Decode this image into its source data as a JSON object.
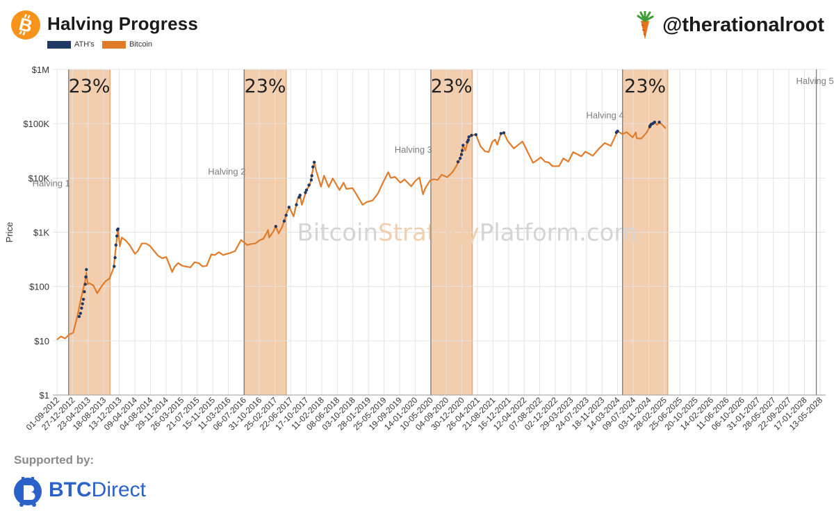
{
  "header": {
    "title": "Halving Progress",
    "handle": "@therationalroot"
  },
  "legend": [
    {
      "label": "ATH's",
      "color": "#1f3864"
    },
    {
      "label": "Bitcoin",
      "color": "#e07b29"
    }
  ],
  "watermark": {
    "part1": "Bitcoin",
    "part2": "Strategy",
    "part3": "Platform.com"
  },
  "footer": {
    "supported_label": "Supported by:",
    "brand_bold": "BTC",
    "brand_light": "Direct"
  },
  "colors": {
    "bitcoin": "#e07b29",
    "ath": "#1f3864",
    "shade": "#f2c9a5",
    "shade_border": "#e8a978",
    "grid": "#e3e3e3",
    "brand_blue": "#2b62c9"
  },
  "chart_data": {
    "type": "line",
    "ylabel": "Price",
    "yscale": "log",
    "ylim": [
      1,
      1000000
    ],
    "yticks": [
      {
        "value": 1,
        "label": "$1"
      },
      {
        "value": 10,
        "label": "$10"
      },
      {
        "value": 100,
        "label": "$100"
      },
      {
        "value": 1000,
        "label": "$1K"
      },
      {
        "value": 10000,
        "label": "$10K"
      },
      {
        "value": 100000,
        "label": "$100K"
      },
      {
        "value": 1000000,
        "label": "$1M"
      }
    ],
    "xlim": [
      "2012-08-01",
      "2028-06-24"
    ],
    "xticks": [
      "01-09-2012",
      "27-12-2012",
      "23-04-2013",
      "18-08-2013",
      "13-12-2013",
      "09-04-2014",
      "04-08-2014",
      "29-11-2014",
      "26-03-2015",
      "21-07-2015",
      "15-11-2015",
      "11-03-2016",
      "06-07-2016",
      "31-10-2016",
      "25-02-2017",
      "22-06-2017",
      "17-10-2017",
      "11-02-2018",
      "08-06-2018",
      "03-10-2018",
      "28-01-2019",
      "25-05-2019",
      "19-09-2019",
      "14-01-2020",
      "10-05-2020",
      "04-09-2020",
      "30-12-2020",
      "26-04-2021",
      "21-08-2021",
      "16-12-2021",
      "12-04-2022",
      "07-08-2022",
      "02-12-2022",
      "29-03-2023",
      "24-07-2023",
      "18-11-2023",
      "14-03-2024",
      "09-07-2024",
      "03-11-2024",
      "28-02-2025",
      "25-06-2025",
      "20-10-2025",
      "14-02-2026",
      "11-06-2026",
      "06-10-2026",
      "31-01-2027",
      "28-05-2027",
      "22-09-2027",
      "17-01-2028",
      "13-05-2028"
    ],
    "halvings": [
      {
        "label": "Halving 1",
        "date": "2012-11-28",
        "band_end": "2013-10-05",
        "label_price": 7000
      },
      {
        "label": "Halving 2",
        "date": "2016-07-09",
        "band_end": "2017-05-20",
        "label_price": 11500
      },
      {
        "label": "Halving 3",
        "date": "2020-05-11",
        "band_end": "2021-03-18",
        "label_price": 29000
      },
      {
        "label": "Halving 4",
        "date": "2024-04-20",
        "band_end": "2025-03-25",
        "label_price": 125000
      },
      {
        "label": "Halving 5",
        "date": "2028-04-15",
        "label_price": 540000
      }
    ],
    "progress_labels": [
      "23%",
      "23%",
      "23%",
      "23%"
    ],
    "series": [
      {
        "name": "Bitcoin",
        "color": "#e07b29",
        "points": [
          [
            "2012-09-01",
            10.5
          ],
          [
            "2012-10-01",
            12
          ],
          [
            "2012-11-01",
            11
          ],
          [
            "2012-12-01",
            13
          ],
          [
            "2013-01-01",
            14
          ],
          [
            "2013-02-01",
            28
          ],
          [
            "2013-03-01",
            60
          ],
          [
            "2013-04-05",
            140
          ],
          [
            "2013-04-10",
            180
          ],
          [
            "2013-04-20",
            110
          ],
          [
            "2013-05-01",
            115
          ],
          [
            "2013-06-01",
            105
          ],
          [
            "2013-07-01",
            75
          ],
          [
            "2013-08-01",
            100
          ],
          [
            "2013-09-01",
            125
          ],
          [
            "2013-10-01",
            140
          ],
          [
            "2013-11-01",
            220
          ],
          [
            "2013-11-20",
            600
          ],
          [
            "2013-12-04",
            1150
          ],
          [
            "2013-12-18",
            550
          ],
          [
            "2014-01-01",
            800
          ],
          [
            "2014-02-01",
            700
          ],
          [
            "2014-03-01",
            580
          ],
          [
            "2014-04-10",
            400
          ],
          [
            "2014-05-01",
            450
          ],
          [
            "2014-06-01",
            620
          ],
          [
            "2014-07-01",
            620
          ],
          [
            "2014-08-01",
            560
          ],
          [
            "2014-09-01",
            450
          ],
          [
            "2014-10-01",
            370
          ],
          [
            "2014-11-01",
            330
          ],
          [
            "2014-12-01",
            350
          ],
          [
            "2015-01-15",
            185
          ],
          [
            "2015-02-01",
            230
          ],
          [
            "2015-03-01",
            270
          ],
          [
            "2015-04-01",
            240
          ],
          [
            "2015-06-01",
            225
          ],
          [
            "2015-07-01",
            280
          ],
          [
            "2015-08-01",
            270
          ],
          [
            "2015-09-01",
            235
          ],
          [
            "2015-10-01",
            240
          ],
          [
            "2015-11-05",
            390
          ],
          [
            "2015-12-01",
            380
          ],
          [
            "2016-01-01",
            430
          ],
          [
            "2016-02-01",
            380
          ],
          [
            "2016-04-01",
            420
          ],
          [
            "2016-05-01",
            450
          ],
          [
            "2016-06-15",
            720
          ],
          [
            "2016-07-01",
            670
          ],
          [
            "2016-08-01",
            580
          ],
          [
            "2016-09-01",
            610
          ],
          [
            "2016-10-01",
            620
          ],
          [
            "2016-11-01",
            710
          ],
          [
            "2016-12-01",
            760
          ],
          [
            "2017-01-04",
            1100
          ],
          [
            "2017-01-12",
            800
          ],
          [
            "2017-02-15",
            1050
          ],
          [
            "2017-03-03",
            1280
          ],
          [
            "2017-03-25",
            950
          ],
          [
            "2017-04-20",
            1250
          ],
          [
            "2017-05-25",
            2300
          ],
          [
            "2017-06-12",
            2900
          ],
          [
            "2017-07-15",
            1950
          ],
          [
            "2017-08-15",
            4200
          ],
          [
            "2017-09-01",
            4800
          ],
          [
            "2017-09-15",
            3200
          ],
          [
            "2017-10-20",
            6000
          ],
          [
            "2017-11-15",
            7500
          ],
          [
            "2017-12-17",
            19500
          ],
          [
            "2018-01-01",
            13500
          ],
          [
            "2018-02-06",
            6900
          ],
          [
            "2018-03-01",
            11000
          ],
          [
            "2018-04-05",
            6800
          ],
          [
            "2018-05-05",
            9800
          ],
          [
            "2018-06-25",
            6000
          ],
          [
            "2018-07-25",
            8200
          ],
          [
            "2018-08-15",
            6300
          ],
          [
            "2018-10-01",
            6500
          ],
          [
            "2018-11-25",
            3900
          ],
          [
            "2018-12-15",
            3200
          ],
          [
            "2019-01-15",
            3600
          ],
          [
            "2019-03-01",
            3850
          ],
          [
            "2019-04-10",
            5200
          ],
          [
            "2019-05-15",
            8000
          ],
          [
            "2019-06-26",
            12800
          ],
          [
            "2019-07-15",
            10000
          ],
          [
            "2019-08-15",
            10500
          ],
          [
            "2019-09-25",
            8200
          ],
          [
            "2019-10-26",
            9400
          ],
          [
            "2019-12-15",
            7000
          ],
          [
            "2020-01-15",
            8800
          ],
          [
            "2020-02-15",
            10200
          ],
          [
            "2020-03-13",
            5000
          ],
          [
            "2020-04-01",
            6600
          ],
          [
            "2020-05-05",
            9000
          ],
          [
            "2020-06-01",
            9500
          ],
          [
            "2020-07-01",
            9200
          ],
          [
            "2020-08-01",
            11500
          ],
          [
            "2020-09-10",
            10300
          ],
          [
            "2020-10-20",
            12800
          ],
          [
            "2020-11-15",
            16000
          ],
          [
            "2020-12-17",
            23000
          ],
          [
            "2021-01-08",
            40000
          ],
          [
            "2021-01-25",
            32000
          ],
          [
            "2021-02-21",
            57000
          ],
          [
            "2021-03-13",
            61000
          ],
          [
            "2021-04-14",
            63000
          ],
          [
            "2021-05-20",
            38000
          ],
          [
            "2021-06-22",
            31000
          ],
          [
            "2021-07-20",
            30000
          ],
          [
            "2021-08-15",
            46000
          ],
          [
            "2021-09-06",
            51000
          ],
          [
            "2021-09-22",
            41000
          ],
          [
            "2021-10-20",
            66000
          ],
          [
            "2021-11-10",
            68000
          ],
          [
            "2021-12-10",
            48000
          ],
          [
            "2022-01-24",
            35000
          ],
          [
            "2022-03-30",
            47000
          ],
          [
            "2022-05-12",
            29000
          ],
          [
            "2022-06-18",
            19000
          ],
          [
            "2022-07-15",
            21000
          ],
          [
            "2022-08-15",
            24000
          ],
          [
            "2022-09-15",
            20000
          ],
          [
            "2022-10-15",
            19200
          ],
          [
            "2022-11-10",
            16500
          ],
          [
            "2022-12-30",
            16500
          ],
          [
            "2023-01-31",
            23000
          ],
          [
            "2023-03-10",
            20000
          ],
          [
            "2023-04-15",
            30000
          ],
          [
            "2023-06-15",
            25000
          ],
          [
            "2023-07-15",
            30500
          ],
          [
            "2023-09-10",
            25700
          ],
          [
            "2023-10-25",
            34500
          ],
          [
            "2023-12-08",
            44000
          ],
          [
            "2024-01-23",
            39000
          ],
          [
            "2024-03-14",
            73000
          ],
          [
            "2024-04-20",
            64000
          ],
          [
            "2024-05-20",
            70000
          ],
          [
            "2024-07-05",
            56000
          ],
          [
            "2024-07-28",
            69000
          ],
          [
            "2024-08-05",
            54000
          ],
          [
            "2024-09-06",
            53000
          ],
          [
            "2024-10-15",
            67000
          ],
          [
            "2024-11-13",
            90000
          ],
          [
            "2024-12-17",
            107000
          ],
          [
            "2025-01-05",
            95000
          ],
          [
            "2025-01-21",
            106000
          ],
          [
            "2025-02-10",
            97000
          ],
          [
            "2025-03-10",
            82000
          ]
        ]
      },
      {
        "name": "ATH's",
        "color": "#1f3864",
        "points": [
          [
            "2013-02-15",
            28
          ],
          [
            "2013-02-25",
            32
          ],
          [
            "2013-03-05",
            40
          ],
          [
            "2013-03-12",
            48
          ],
          [
            "2013-03-19",
            58
          ],
          [
            "2013-03-26",
            80
          ],
          [
            "2013-04-02",
            110
          ],
          [
            "2013-04-06",
            150
          ],
          [
            "2013-04-10",
            205
          ],
          [
            "2013-11-05",
            235
          ],
          [
            "2013-11-12",
            340
          ],
          [
            "2013-11-18",
            580
          ],
          [
            "2013-11-25",
            850
          ],
          [
            "2013-11-29",
            1100
          ],
          [
            "2013-12-04",
            1150
          ],
          [
            "2017-03-03",
            1280
          ],
          [
            "2017-05-05",
            1600
          ],
          [
            "2017-05-20",
            2050
          ],
          [
            "2017-06-10",
            2900
          ],
          [
            "2017-08-05",
            3200
          ],
          [
            "2017-08-25",
            4400
          ],
          [
            "2017-09-01",
            4800
          ],
          [
            "2017-10-12",
            5400
          ],
          [
            "2017-10-20",
            6000
          ],
          [
            "2017-11-07",
            7400
          ],
          [
            "2017-11-25",
            9200
          ],
          [
            "2017-11-29",
            11000
          ],
          [
            "2017-12-07",
            16000
          ],
          [
            "2017-12-17",
            19500
          ],
          [
            "2020-12-01",
            19800
          ],
          [
            "2020-12-17",
            23000
          ],
          [
            "2020-12-27",
            27000
          ],
          [
            "2021-01-02",
            32000
          ],
          [
            "2021-01-08",
            40000
          ],
          [
            "2021-02-09",
            46000
          ],
          [
            "2021-02-16",
            50000
          ],
          [
            "2021-02-21",
            57000
          ],
          [
            "2021-03-13",
            61000
          ],
          [
            "2021-04-14",
            63000
          ],
          [
            "2021-10-20",
            66000
          ],
          [
            "2021-11-10",
            68000
          ],
          [
            "2024-03-05",
            69000
          ],
          [
            "2024-03-14",
            73000
          ],
          [
            "2024-11-11",
            88000
          ],
          [
            "2024-11-13",
            92000
          ],
          [
            "2024-11-22",
            98000
          ],
          [
            "2024-12-05",
            101000
          ],
          [
            "2024-12-17",
            107000
          ],
          [
            "2025-01-21",
            106500
          ]
        ]
      }
    ]
  }
}
